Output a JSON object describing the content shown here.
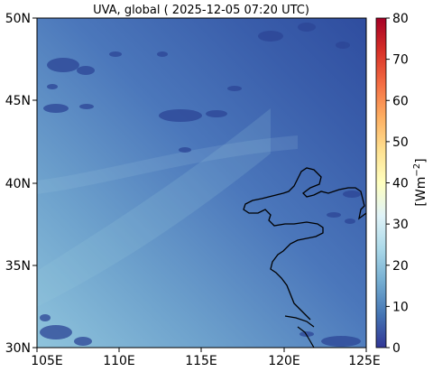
{
  "map": {
    "title": "UVA, global ( 2025-12-05 07:20 UTC)",
    "lat_labels": [
      "50N",
      "45N",
      "40N",
      "35N",
      "30N"
    ],
    "lon_labels": [
      "105E",
      "110E",
      "115E",
      "120E",
      "125E"
    ],
    "lat_range": [
      30,
      50
    ],
    "lon_range": [
      105,
      125
    ],
    "colorbar": {
      "unit_main": "[Wm",
      "unit_sup": "−2",
      "unit_close": "]",
      "ticks": [
        "0",
        "10",
        "20",
        "30",
        "40",
        "50",
        "60",
        "70",
        "80"
      ],
      "range": [
        0,
        80
      ],
      "colormap": "RdYlBu_r"
    },
    "colors": {
      "field_low": "#2f4ea0",
      "field_mid": "#4a78bb",
      "field_high": "#86bbd7",
      "coastline": "#000000"
    }
  }
}
